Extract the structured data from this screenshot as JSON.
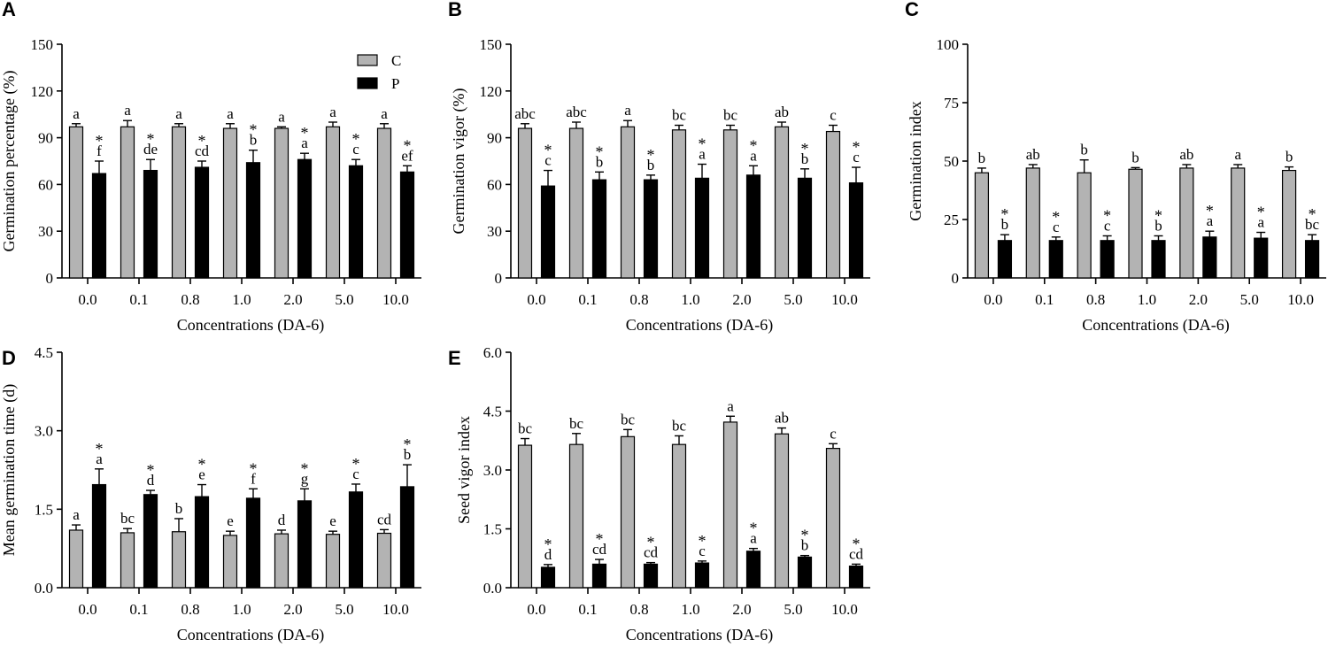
{
  "chart_data": [
    {
      "panel": "A",
      "type": "bar",
      "categories": [
        "0.0",
        "0.1",
        "0.8",
        "1.0",
        "2.0",
        "5.0",
        "10.0"
      ],
      "xlabel": "Concentrations (DA-6)",
      "ylabel": "Germination percentage (%)",
      "ylim": [
        0,
        150
      ],
      "yticks": [
        "0",
        "30",
        "60",
        "90",
        "120",
        "150"
      ],
      "legend": true,
      "legend_position": "top-right",
      "series": [
        {
          "name": "C",
          "color": "#b3b3b3",
          "values": [
            97,
            97,
            97,
            96,
            96,
            97,
            96
          ],
          "errors": [
            2,
            4,
            2,
            3,
            1,
            3,
            3
          ],
          "letters": [
            "a",
            "a",
            "a",
            "a",
            "a",
            "a",
            "a"
          ],
          "stars": [
            "",
            "",
            "",
            "",
            "",
            "",
            ""
          ]
        },
        {
          "name": "P",
          "color": "#000000",
          "values": [
            67,
            69,
            71,
            74,
            76,
            72,
            68
          ],
          "errors": [
            8,
            7,
            4,
            8,
            4,
            4,
            4
          ],
          "letters": [
            "f",
            "de",
            "cd",
            "b",
            "a",
            "c",
            "ef"
          ],
          "stars": [
            "*",
            "*",
            "*",
            "*",
            "*",
            "*",
            "*"
          ]
        }
      ]
    },
    {
      "panel": "B",
      "type": "bar",
      "categories": [
        "0.0",
        "0.1",
        "0.8",
        "1.0",
        "2.0",
        "5.0",
        "10.0"
      ],
      "xlabel": "Concentrations (DA-6)",
      "ylabel": "Germination vigor (%)",
      "ylim": [
        0,
        150
      ],
      "yticks": [
        "0",
        "30",
        "60",
        "90",
        "120",
        "150"
      ],
      "legend": false,
      "series": [
        {
          "name": "C",
          "color": "#b3b3b3",
          "values": [
            96,
            96,
            97,
            95,
            95,
            97,
            94
          ],
          "errors": [
            3,
            4,
            4,
            3,
            3,
            3,
            4
          ],
          "letters": [
            "abc",
            "abc",
            "a",
            "bc",
            "bc",
            "ab",
            "c"
          ],
          "stars": [
            "",
            "",
            "",
            "",
            "",
            "",
            ""
          ]
        },
        {
          "name": "P",
          "color": "#000000",
          "values": [
            59,
            63,
            63,
            64,
            66,
            64,
            61
          ],
          "errors": [
            10,
            5,
            3,
            9,
            6,
            6,
            10
          ],
          "letters": [
            "c",
            "b",
            "b",
            "a",
            "a",
            "b",
            "c"
          ],
          "stars": [
            "*",
            "*",
            "*",
            "*",
            "*",
            "*",
            "*"
          ]
        }
      ]
    },
    {
      "panel": "C",
      "type": "bar",
      "categories": [
        "0.0",
        "0.1",
        "0.8",
        "1.0",
        "2.0",
        "5.0",
        "10.0"
      ],
      "xlabel": "Concentrations (DA-6)",
      "ylabel": "Germination index",
      "ylim": [
        0,
        100
      ],
      "yticks": [
        "0",
        "25",
        "50",
        "75",
        "100"
      ],
      "legend": false,
      "series": [
        {
          "name": "C",
          "color": "#b3b3b3",
          "values": [
            45,
            47,
            45,
            46.5,
            47,
            47,
            46
          ],
          "errors": [
            2,
            1.5,
            5.5,
            0.7,
            1.5,
            1.5,
            1.5
          ],
          "letters": [
            "b",
            "ab",
            "b",
            "b",
            "ab",
            "a",
            "b"
          ],
          "stars": [
            "",
            "",
            "",
            "",
            "",
            "",
            ""
          ]
        },
        {
          "name": "P",
          "color": "#000000",
          "values": [
            16,
            16,
            16,
            16,
            17.5,
            17,
            16
          ],
          "errors": [
            2.5,
            1.5,
            2,
            2,
            2.5,
            2.5,
            2.5
          ],
          "letters": [
            "b",
            "c",
            "c",
            "b",
            "a",
            "a",
            "bc"
          ],
          "stars": [
            "*",
            "*",
            "*",
            "*",
            "*",
            "*",
            "*"
          ]
        }
      ]
    },
    {
      "panel": "D",
      "type": "bar",
      "categories": [
        "0.0",
        "0.1",
        "0.8",
        "1.0",
        "2.0",
        "5.0",
        "10.0"
      ],
      "xlabel": "Concentrations (DA-6)",
      "ylabel": "Mean germination time (d)",
      "ylim": [
        0,
        4.5
      ],
      "yticks": [
        "0.0",
        "1.5",
        "3.0",
        "4.5"
      ],
      "legend": false,
      "series": [
        {
          "name": "C",
          "color": "#b3b3b3",
          "values": [
            1.1,
            1.05,
            1.07,
            1.0,
            1.03,
            1.02,
            1.04
          ],
          "errors": [
            0.1,
            0.08,
            0.25,
            0.08,
            0.07,
            0.06,
            0.07
          ],
          "letters": [
            "a",
            "bc",
            "b",
            "e",
            "d",
            "e",
            "cd"
          ],
          "stars": [
            "",
            "",
            "",
            "",
            "",
            "",
            ""
          ]
        },
        {
          "name": "P",
          "color": "#000000",
          "values": [
            1.97,
            1.78,
            1.74,
            1.71,
            1.66,
            1.83,
            1.93
          ],
          "errors": [
            0.3,
            0.08,
            0.23,
            0.18,
            0.23,
            0.15,
            0.42
          ],
          "letters": [
            "a",
            "d",
            "e",
            "f",
            "g",
            "c",
            "b"
          ],
          "stars": [
            "*",
            "*",
            "*",
            "*",
            "*",
            "*",
            "*"
          ]
        }
      ]
    },
    {
      "panel": "E",
      "type": "bar",
      "categories": [
        "0.0",
        "0.1",
        "0.8",
        "1.0",
        "2.0",
        "5.0",
        "10.0"
      ],
      "xlabel": "Concentrations (DA-6)",
      "ylabel": "Seed vigor index",
      "ylim": [
        0,
        6.0
      ],
      "yticks": [
        "0.0",
        "1.5",
        "3.0",
        "4.5",
        "6.0"
      ],
      "legend": false,
      "series": [
        {
          "name": "C",
          "color": "#b3b3b3",
          "values": [
            3.63,
            3.65,
            3.85,
            3.65,
            4.22,
            3.92,
            3.55
          ],
          "errors": [
            0.17,
            0.28,
            0.18,
            0.22,
            0.15,
            0.15,
            0.12
          ],
          "letters": [
            "bc",
            "bc",
            "bc",
            "bc",
            "a",
            "ab",
            "c"
          ],
          "stars": [
            "",
            "",
            "",
            "",
            "",
            "",
            ""
          ]
        },
        {
          "name": "P",
          "color": "#000000",
          "values": [
            0.52,
            0.6,
            0.6,
            0.63,
            0.93,
            0.78,
            0.55
          ],
          "errors": [
            0.07,
            0.12,
            0.04,
            0.05,
            0.07,
            0.04,
            0.05
          ],
          "letters": [
            "d",
            "cd",
            "cd",
            "c",
            "a",
            "b",
            "cd"
          ],
          "stars": [
            "*",
            "*",
            "*",
            "*",
            "*",
            "*",
            "*"
          ]
        }
      ]
    }
  ]
}
